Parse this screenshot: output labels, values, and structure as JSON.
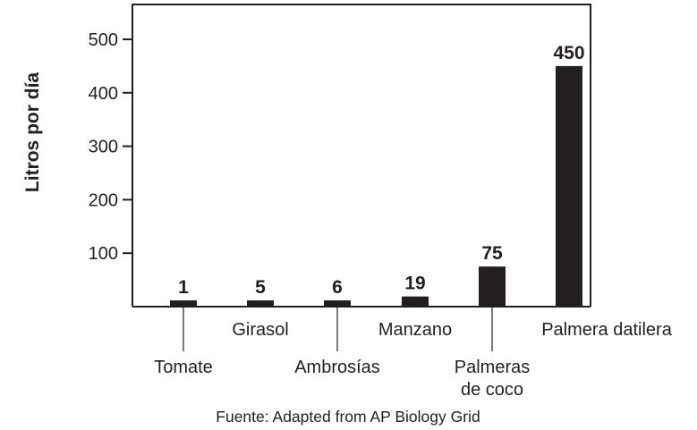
{
  "chart_data": {
    "type": "bar",
    "categories": [
      "Tomate",
      "Girasol",
      "Ambrosías",
      "Manzano",
      "Palmeras de coco",
      "Palmera datilera"
    ],
    "category_label_lines": [
      [
        "Tomate"
      ],
      [
        "Girasol"
      ],
      [
        "Ambrosías"
      ],
      [
        "Manzano"
      ],
      [
        "Palmeras",
        "de coco"
      ],
      [
        "Palmera datilera"
      ]
    ],
    "values": [
      1,
      5,
      6,
      19,
      75,
      450
    ],
    "data_labels": [
      "1",
      "5",
      "6",
      "19",
      "75",
      "450"
    ],
    "ylabel": "Litros por día",
    "xlabel": "",
    "yticks": [
      100,
      200,
      300,
      400,
      500
    ],
    "ylim": [
      0,
      500
    ],
    "grid": false,
    "legend": "none",
    "bar_color": "#231f20",
    "source": "Fuente: Adapted from AP Biology Grid"
  }
}
